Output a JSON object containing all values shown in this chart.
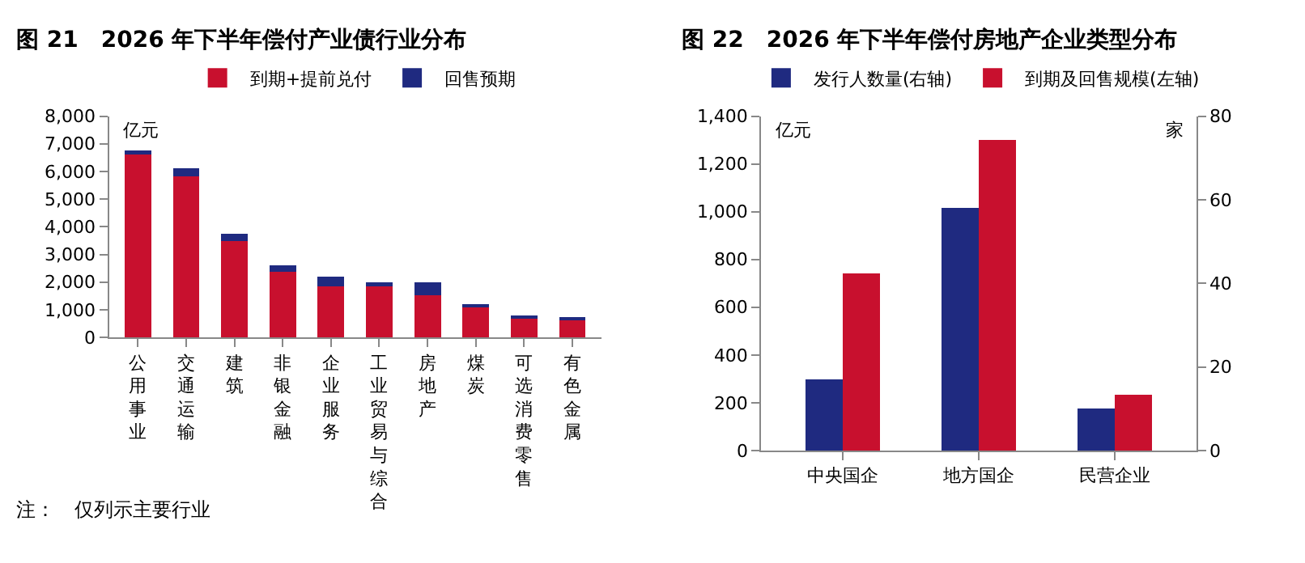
{
  "chart_data": [
    {
      "type": "bar",
      "title": "图 21　2026 年下半年偿付产业债行业分布",
      "ylabel": "亿元",
      "stacked": true,
      "legend": "top",
      "categories": [
        "公用事业",
        "交通运输",
        "建筑",
        "非银金融",
        "企业服务",
        "工业贸易与综合",
        "房地产",
        "煤炭",
        "可选消费零售",
        "有色金属"
      ],
      "series": [
        {
          "name": "到期+提前兑付",
          "color": "#c8102e",
          "values": [
            6600,
            5830,
            3480,
            2370,
            1840,
            1840,
            1520,
            1130,
            730,
            650
          ]
        },
        {
          "name": "回售预期",
          "color": "#1f2a80",
          "values": [
            150,
            280,
            260,
            240,
            350,
            140,
            460,
            80,
            60,
            80
          ]
        }
      ],
      "ylim": [
        0,
        8000
      ],
      "yticks": [
        0,
        {
          "value": 1000,
          "label": "1,000"
        },
        {
          "value": 2000,
          "label": "2,000"
        },
        {
          "value": 3000,
          "label": "3,000"
        },
        {
          "value": 4000,
          "label": "4,000"
        },
        {
          "value": 5000,
          "label": "5,000"
        },
        {
          "value": 6000,
          "label": "6,000"
        },
        {
          "value": 7000,
          "label": "7,000"
        },
        {
          "value": 8000,
          "label": "8,000"
        }
      ],
      "annotations": [
        "注：　仅列示主要行业"
      ]
    },
    {
      "type": "bar",
      "title": "图 22　2026 年下半年偿付房地产企业类型分布",
      "ylabel": "亿元",
      "y2label": "家",
      "legend": "top",
      "categories": [
        "中央国企",
        "地方国企",
        "民营企业"
      ],
      "series": [
        {
          "name": "发行人数量(右轴)",
          "color": "#1f2a80",
          "axis": "y2",
          "values": [
            17,
            58,
            10
          ]
        },
        {
          "name": "到期及回售规模(左轴)",
          "color": "#c8102e",
          "values": [
            740,
            1300,
            235
          ]
        }
      ],
      "ylim": [
        0,
        1400
      ],
      "yticks": [
        0,
        200,
        400,
        600,
        800,
        {
          "value": 1000,
          "label": "1,000"
        },
        {
          "value": 1200,
          "label": "1,200"
        },
        {
          "value": 1400,
          "label": "1,400"
        }
      ],
      "y2lim": [
        0,
        80
      ],
      "y2ticks": [
        0,
        20,
        40,
        60,
        80
      ]
    }
  ]
}
